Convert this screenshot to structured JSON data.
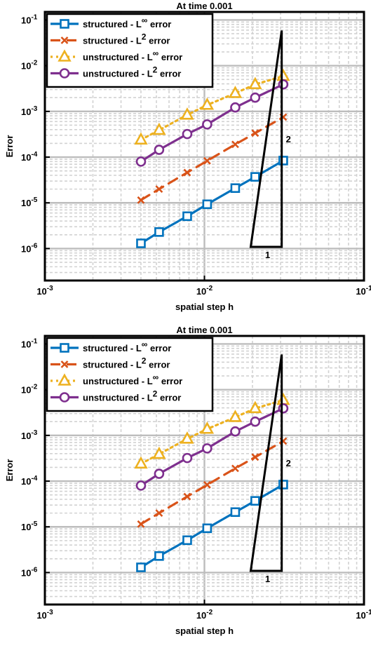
{
  "chart_data": [
    {
      "type": "line",
      "title": "At time 0.001",
      "xlabel": "spatial step h",
      "ylabel": "Error",
      "xscale": "log",
      "yscale": "log",
      "xlim": [
        0.001,
        0.1
      ],
      "ylim": [
        2e-07,
        0.15
      ],
      "x_ticks": [
        {
          "base": "10",
          "exp": "-3"
        },
        {
          "base": "10",
          "exp": "-2"
        },
        {
          "base": "10",
          "exp": "-1"
        }
      ],
      "y_ticks": [
        {
          "base": "10",
          "exp": "-6"
        },
        {
          "base": "10",
          "exp": "-5"
        },
        {
          "base": "10",
          "exp": "-4"
        },
        {
          "base": "10",
          "exp": "-3"
        },
        {
          "base": "10",
          "exp": "-2"
        },
        {
          "base": "10",
          "exp": "-1"
        }
      ],
      "grid": true,
      "legend_position": "top-left",
      "x": [
        0.004,
        0.0052,
        0.0078,
        0.0104,
        0.0156,
        0.0208,
        0.0312
      ],
      "series": [
        {
          "name": "structured - L∞ error",
          "name_base": "structured - L",
          "name_sup": "∞",
          "name_tail": " error",
          "color": "#0072BD",
          "line": "solid",
          "marker": "square",
          "values": [
            1.3e-06,
            2.3e-06,
            5.1e-06,
            9.3e-06,
            2.1e-05,
            3.7e-05,
            8.4e-05
          ]
        },
        {
          "name": "structured - L2 error",
          "name_base": "structured - L",
          "name_sup": "2",
          "name_tail": " error",
          "color": "#D95319",
          "line": "dashed",
          "marker": "x",
          "values": [
            1.15e-05,
            2e-05,
            4.6e-05,
            8.3e-05,
            0.00019,
            0.000335,
            0.00075
          ]
        },
        {
          "name": "unstructured - L∞ error",
          "name_base": "unstructured - L",
          "name_sup": "∞",
          "name_tail": " error",
          "color": "#EDB120",
          "line": "dotted",
          "marker": "triangle",
          "values": [
            0.00024,
            0.00039,
            0.00084,
            0.00138,
            0.0025,
            0.0039,
            0.0059
          ]
        },
        {
          "name": "unstructured - L2 error",
          "name_base": "unstructured - L",
          "name_sup": "2",
          "name_tail": " error",
          "color": "#7E2F8E",
          "line": "solid",
          "marker": "circle",
          "values": [
            8e-05,
            0.000145,
            0.00032,
            0.00052,
            0.00122,
            0.002,
            0.0039
          ]
        }
      ],
      "annotation": {
        "type": "slope-triangle",
        "slope_label": "2",
        "run_label": "1",
        "x_range": [
          0.0195,
          0.0305
        ]
      }
    },
    {
      "type": "line",
      "title": "At time 0.001",
      "xlabel": "spatial step h",
      "ylabel": "Error",
      "xscale": "log",
      "yscale": "log",
      "xlim": [
        0.001,
        0.1
      ],
      "ylim": [
        2e-07,
        0.15
      ],
      "x_ticks": [
        {
          "base": "10",
          "exp": "-3"
        },
        {
          "base": "10",
          "exp": "-2"
        },
        {
          "base": "10",
          "exp": "-1"
        }
      ],
      "y_ticks": [
        {
          "base": "10",
          "exp": "-6"
        },
        {
          "base": "10",
          "exp": "-5"
        },
        {
          "base": "10",
          "exp": "-4"
        },
        {
          "base": "10",
          "exp": "-3"
        },
        {
          "base": "10",
          "exp": "-2"
        },
        {
          "base": "10",
          "exp": "-1"
        }
      ],
      "grid": true,
      "legend_position": "top-left",
      "x": [
        0.004,
        0.0052,
        0.0078,
        0.0104,
        0.0156,
        0.0208,
        0.0312
      ],
      "series": [
        {
          "name": "structured - L∞ error",
          "name_base": "structured - L",
          "name_sup": "∞",
          "name_tail": " error",
          "color": "#0072BD",
          "line": "solid",
          "marker": "square",
          "values": [
            1.3e-06,
            2.3e-06,
            5.1e-06,
            9.3e-06,
            2.1e-05,
            3.7e-05,
            8.4e-05
          ]
        },
        {
          "name": "structured - L2 error",
          "name_base": "structured - L",
          "name_sup": "2",
          "name_tail": " error",
          "color": "#D95319",
          "line": "dashed",
          "marker": "x",
          "values": [
            1.15e-05,
            2e-05,
            4.6e-05,
            8.3e-05,
            0.00019,
            0.000335,
            0.00075
          ]
        },
        {
          "name": "unstructured - L∞ error",
          "name_base": "unstructured - L",
          "name_sup": "∞",
          "name_tail": " error",
          "color": "#EDB120",
          "line": "dotted",
          "marker": "triangle",
          "values": [
            0.00024,
            0.00039,
            0.00084,
            0.00138,
            0.0025,
            0.0039,
            0.0059
          ]
        },
        {
          "name": "unstructured - L2 error",
          "name_base": "unstructured - L",
          "name_sup": "2",
          "name_tail": " error",
          "color": "#7E2F8E",
          "line": "solid",
          "marker": "circle",
          "values": [
            8e-05,
            0.000145,
            0.00032,
            0.00052,
            0.00122,
            0.002,
            0.0039
          ]
        }
      ],
      "annotation": {
        "type": "slope-triangle",
        "slope_label": "2",
        "run_label": "1",
        "x_range": [
          0.0195,
          0.0305
        ]
      }
    }
  ]
}
